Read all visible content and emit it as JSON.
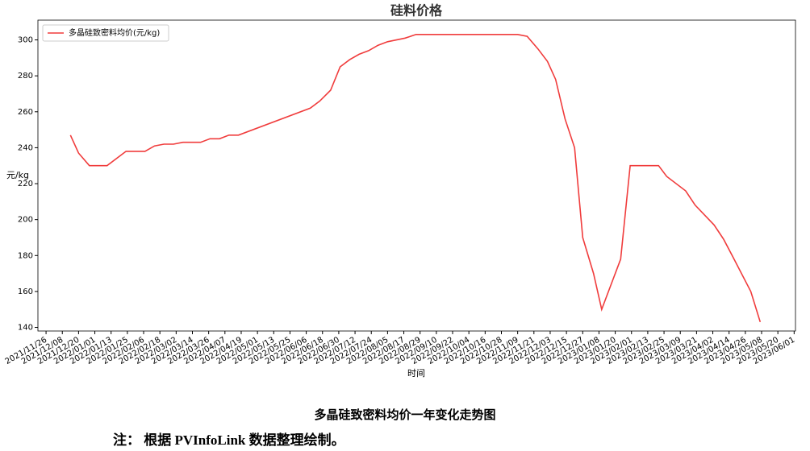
{
  "chart_data": {
    "type": "line",
    "title": "硅料价格",
    "x_label": "时间",
    "y_label": "元/kg",
    "x": [
      "2021/12/14",
      "2021/12/20",
      "2021/12/28",
      "2022/01/10",
      "2022/01/24",
      "2022/02/07",
      "2022/02/14",
      "2022/02/21",
      "2022/02/28",
      "2022/03/07",
      "2022/03/20",
      "2022/03/27",
      "2022/04/03",
      "2022/04/10",
      "2022/04/17",
      "2022/06/09",
      "2022/06/16",
      "2022/06/24",
      "2022/07/01",
      "2022/07/08",
      "2022/07/15",
      "2022/07/22",
      "2022/07/29",
      "2022/08/05",
      "2022/08/18",
      "2022/08/26",
      "2022/11/09",
      "2022/11/16",
      "2022/11/24",
      "2022/12/01",
      "2022/12/07",
      "2022/12/14",
      "2022/12/21",
      "2022/12/27",
      "2023/01/04",
      "2023/01/10",
      "2023/01/24",
      "2023/01/31",
      "2023/02/21",
      "2023/02/27",
      "2023/03/13",
      "2023/03/20",
      "2023/04/03",
      "2023/04/10",
      "2023/04/17",
      "2023/04/30",
      "2023/05/07"
    ],
    "series": [
      {
        "name": "多晶硅致密料均价(元/kg)",
        "color": "#f03c3c",
        "values": [
          247,
          237,
          230,
          230,
          238,
          238,
          241,
          242,
          242,
          243,
          243,
          245,
          245,
          247,
          247,
          262,
          266,
          272,
          285,
          289,
          292,
          294,
          297,
          299,
          301,
          303,
          303,
          302,
          295,
          288,
          278,
          256,
          240,
          190,
          170,
          150,
          178,
          230,
          230,
          224,
          216,
          208,
          197,
          189,
          179,
          160,
          143
        ]
      }
    ],
    "xlim": [
      "2021/11/20",
      "2023/06/02"
    ],
    "xticks": [
      "2021/11/26",
      "2021/12/08",
      "2021/12/20",
      "2022/01/01",
      "2022/01/13",
      "2022/01/25",
      "2022/02/06",
      "2022/02/18",
      "2022/03/02",
      "2022/03/14",
      "2022/03/26",
      "2022/04/07",
      "2022/04/19",
      "2022/05/01",
      "2022/05/13",
      "2022/05/25",
      "2022/06/06",
      "2022/06/18",
      "2022/06/30",
      "2022/07/12",
      "2022/07/24",
      "2022/08/05",
      "2022/08/17",
      "2022/08/29",
      "2022/09/10",
      "2022/09/22",
      "2022/10/04",
      "2022/10/16",
      "2022/10/28",
      "2022/11/09",
      "2022/11/21",
      "2022/12/03",
      "2022/12/15",
      "2022/12/27",
      "2023/01/08",
      "2023/01/20",
      "2023/02/01",
      "2023/02/13",
      "2023/02/25",
      "2023/03/09",
      "2023/03/21",
      "2023/04/02",
      "2023/04/14",
      "2023/04/26",
      "2023/05/08",
      "2023/05/20",
      "2023/06/01"
    ],
    "ylim": [
      138,
      311
    ],
    "yticks": [
      140,
      160,
      180,
      200,
      220,
      240,
      260,
      280,
      300
    ],
    "legend": "upper left"
  },
  "caption": "多晶硅致密料均价一年变化走势图",
  "note": "注： 根据 PVInfoLink 数据整理绘制。"
}
